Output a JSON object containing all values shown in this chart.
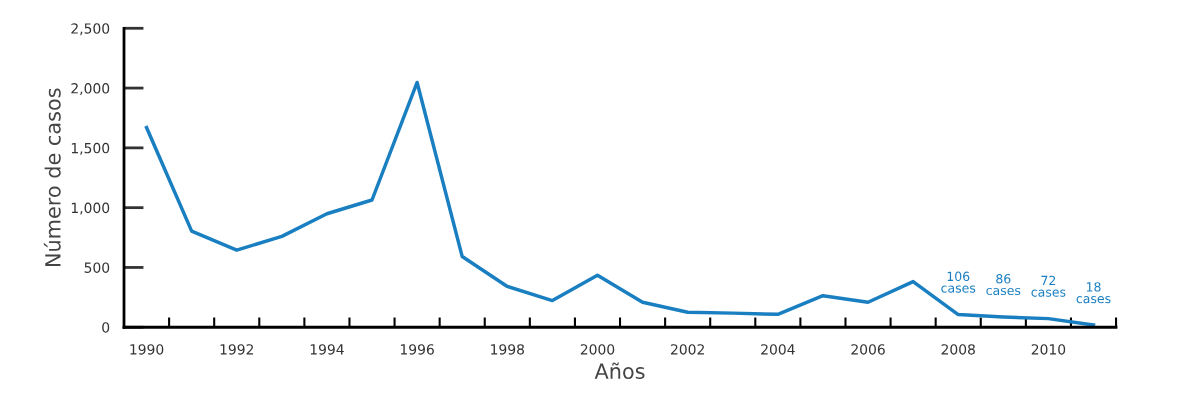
{
  "chart_data": {
    "type": "line",
    "xlabel": "Años",
    "ylabel": "Número de casos",
    "x": [
      1990,
      1991,
      1992,
      1993,
      1994,
      1995,
      1996,
      1997,
      1998,
      1999,
      2000,
      2001,
      2002,
      2003,
      2004,
      2005,
      2006,
      2007,
      2008,
      2009,
      2010,
      2011
    ],
    "series": [
      {
        "color": "#1a7fc1",
        "values": [
          1670,
          804,
          645,
          760,
          949,
          1064,
          2047,
          591,
          341,
          223,
          435,
          209,
          125,
          118,
          108,
          264,
          209,
          382,
          106,
          86,
          72,
          18
        ],
        "value_labels": [
          null,
          null,
          null,
          null,
          null,
          null,
          null,
          null,
          null,
          null,
          null,
          null,
          null,
          null,
          null,
          null,
          null,
          null,
          "106\ncases",
          "86\ncases",
          "72\ncases",
          "18\ncases"
        ]
      }
    ],
    "xlim": [
      1989.5,
      2011.5
    ],
    "ylim": [
      0,
      2500
    ],
    "xticks": [
      1990,
      1992,
      1994,
      1996,
      1998,
      2000,
      2002,
      2004,
      2006,
      2008,
      2010,
      {
        "value": 1990.5,
        "label": null
      },
      {
        "value": 1991.5,
        "label": null
      },
      {
        "value": 1992.5,
        "label": null
      },
      {
        "value": 1993.5,
        "label": null
      },
      {
        "value": 1994.5,
        "label": null
      },
      {
        "value": 1995.5,
        "label": null
      },
      {
        "value": 1996.5,
        "label": null
      },
      {
        "value": 1997.5,
        "label": null
      },
      {
        "value": 1998.5,
        "label": null
      },
      {
        "value": 1999.5,
        "label": null
      },
      {
        "value": 2000.5,
        "label": null
      },
      {
        "value": 2001.5,
        "label": null
      },
      {
        "value": 2002.5,
        "label": null
      },
      {
        "value": 2003.5,
        "label": null
      },
      {
        "value": 2004.5,
        "label": null
      },
      {
        "value": 2005.5,
        "label": null
      },
      {
        "value": 2006.5,
        "label": null
      },
      {
        "value": 2007.5,
        "label": null
      },
      {
        "value": 2008.5,
        "label": null
      },
      {
        "value": 2009.5,
        "label": null
      },
      {
        "value": 2010.5,
        "label": null
      },
      {
        "value": 2011.5,
        "label": null
      }
    ],
    "yticks": [
      0,
      {
        "value": 500,
        "label": "500"
      },
      {
        "value": 1000,
        "label": "1,000"
      },
      {
        "value": 1500,
        "label": "1,500"
      },
      {
        "value": 2000,
        "label": "2,000"
      },
      {
        "value": 2500,
        "label": "2,500"
      }
    ],
    "grid": false,
    "legend": false,
    "marker": "none",
    "line_style": "solid"
  }
}
